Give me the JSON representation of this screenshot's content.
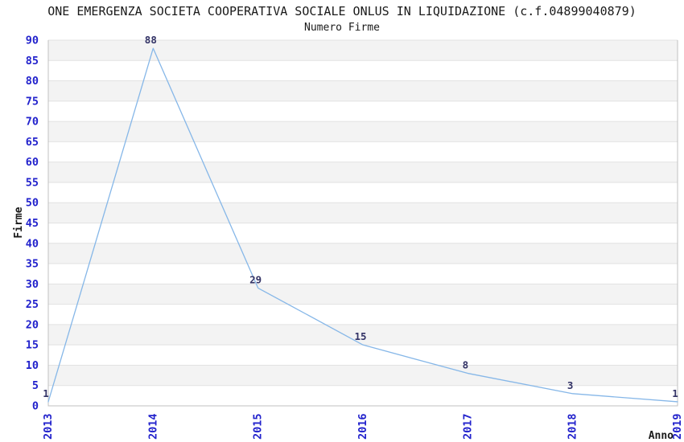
{
  "header": {
    "title": "ONE EMERGENZA SOCIETA COOPERATIVA SOCIALE ONLUS IN LIQUIDAZIONE (c.f.04899040879)",
    "subtitle": "Numero Firme"
  },
  "chart_data": {
    "type": "line",
    "title": "ONE EMERGENZA SOCIETA COOPERATIVA SOCIALE ONLUS IN LIQUIDAZIONE (c.f.04899040879)",
    "subtitle": "Numero Firme",
    "series_name": "Numero Firme",
    "x": [
      "2013",
      "2014",
      "2015",
      "2016",
      "2017",
      "2018",
      "2019"
    ],
    "values": [
      1,
      88,
      29,
      15,
      8,
      3,
      1
    ],
    "data_labels": [
      "1",
      "88",
      "29",
      "15",
      "8",
      "3",
      "1"
    ],
    "xlabel": "Anno",
    "ylabel": "Firme",
    "ylim": [
      0,
      90
    ],
    "ytick_step": 5,
    "yticks": [
      0,
      5,
      10,
      15,
      20,
      25,
      30,
      35,
      40,
      45,
      50,
      55,
      60,
      65,
      70,
      75,
      80,
      85,
      90
    ],
    "legend": "none",
    "grid": "horizontal-gridlines-with-alternating-bands",
    "markers": "none",
    "colors": {
      "line": "#86b7e8",
      "tick_label": "#2222cc",
      "data_label": "#333366",
      "band": "#f3f3f3",
      "gridline": "#e2e2e2",
      "border": "#c0c0c0",
      "axis_title": "#1a1a1a",
      "background": "#ffffff"
    }
  }
}
